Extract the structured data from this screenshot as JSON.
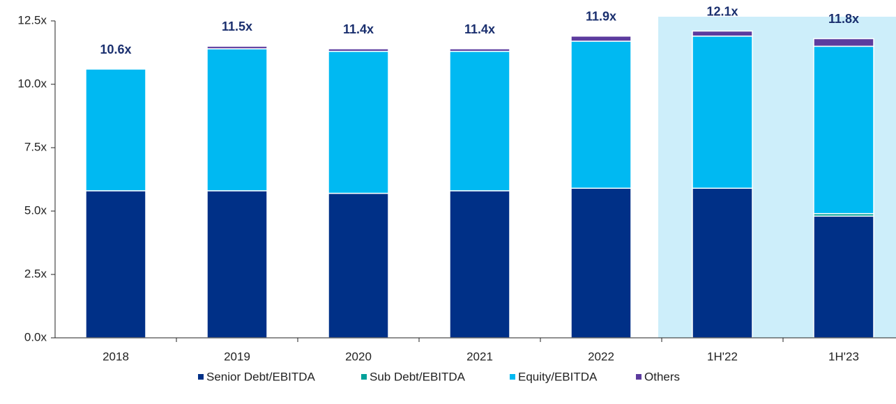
{
  "chart_data": {
    "type": "stacked_bar",
    "categories": [
      "2018",
      "2019",
      "2020",
      "2021",
      "2022",
      "1H'22",
      "1H'23"
    ],
    "series": [
      {
        "name": "Senior Debt/EBITDA",
        "color": "#003087",
        "values": [
          5.8,
          5.8,
          5.7,
          5.8,
          5.9,
          5.9,
          4.8
        ]
      },
      {
        "name": "Sub Debt/EBITDA",
        "color": "#00a19a",
        "values": [
          0.0,
          0.0,
          0.0,
          0.0,
          0.0,
          0.0,
          0.1
        ]
      },
      {
        "name": "Equity/EBITDA",
        "color": "#00b9f2",
        "values": [
          4.8,
          5.6,
          5.6,
          5.5,
          5.8,
          6.0,
          6.6
        ]
      },
      {
        "name": "Others",
        "color": "#5c3b9e",
        "values": [
          0.0,
          0.1,
          0.1,
          0.1,
          0.2,
          0.2,
          0.3
        ]
      }
    ],
    "totals": [
      10.6,
      11.5,
      11.4,
      11.4,
      11.9,
      12.1,
      11.8
    ],
    "total_labels": [
      "10.6x",
      "11.5x",
      "11.4x",
      "11.4x",
      "11.9x",
      "12.1x",
      "11.8x"
    ],
    "ylim": [
      0,
      12.5
    ],
    "yticks": [
      {
        "value": 0,
        "label": "0.0x"
      },
      {
        "value": 2.5,
        "label": "2.5x"
      },
      {
        "value": 5,
        "label": "5.0x"
      },
      {
        "value": 7.5,
        "label": "7.5x"
      },
      {
        "value": 10,
        "label": "10.0x"
      },
      {
        "value": 12.5,
        "label": "12.5x"
      }
    ],
    "highlight_categories": [
      "1H'22",
      "1H'23"
    ],
    "highlight_color": "#cdeefa",
    "legend": "bottom"
  }
}
